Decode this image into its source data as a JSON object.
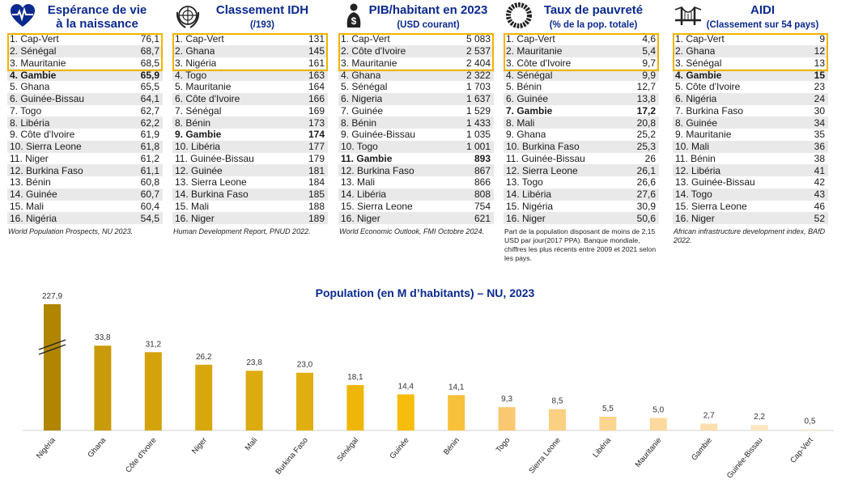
{
  "panels": [
    {
      "id": "esperance",
      "title": "Espérance de vie",
      "subtitle": "à la naissance",
      "icon": "heart-pulse-icon",
      "rows": [
        {
          "name": "1. Cap-Vert",
          "value": "76,1"
        },
        {
          "name": "2. Sénégal",
          "value": "68,7"
        },
        {
          "name": "3. Mauritanie",
          "value": "68,5"
        },
        {
          "name": "4. Gambie",
          "value": "65,9",
          "bold": true
        },
        {
          "name": "5. Ghana",
          "value": "65,5"
        },
        {
          "name": "6. Guinée-Bissau",
          "value": "64,1"
        },
        {
          "name": "7. Togo",
          "value": "62,7"
        },
        {
          "name": "8. Libéria",
          "value": "62,2"
        },
        {
          "name": "9. Côte d'Ivoire",
          "value": "61,9"
        },
        {
          "name": "10. Sierra Leone",
          "value": "61,8"
        },
        {
          "name": "11. Niger",
          "value": "61,2"
        },
        {
          "name": "12. Burkina Faso",
          "value": "61,1"
        },
        {
          "name": "13. Bénin",
          "value": "60,8"
        },
        {
          "name": "14. Guinée",
          "value": "60,7"
        },
        {
          "name": "15. Mali",
          "value": "60,4"
        },
        {
          "name": "16. Nigéria",
          "value": "54,5"
        }
      ],
      "source": "World Population Prospects, NU 2023."
    },
    {
      "id": "idh",
      "title": "Classement IDH",
      "subtitle": "(/193)",
      "icon": "un-globe-icon",
      "rows": [
        {
          "name": "1. Cap-Vert",
          "value": "131"
        },
        {
          "name": "2. Ghana",
          "value": "145"
        },
        {
          "name": "3. Nigéria",
          "value": "161"
        },
        {
          "name": "4. Togo",
          "value": "163"
        },
        {
          "name": "5. Mauritanie",
          "value": "164"
        },
        {
          "name": "6. Côte d'Ivoire",
          "value": "166"
        },
        {
          "name": "7. Sénégal",
          "value": "169"
        },
        {
          "name": "8. Bénin",
          "value": "173"
        },
        {
          "name": "9. Gambie",
          "value": "174",
          "bold": true
        },
        {
          "name": "10. Libéria",
          "value": "177"
        },
        {
          "name": "11. Guinée-Bissau",
          "value": "179"
        },
        {
          "name": "12. Guinée",
          "value": "181"
        },
        {
          "name": "13. Sierra Leone",
          "value": "184"
        },
        {
          "name": "14. Burkina Faso",
          "value": "185"
        },
        {
          "name": "15. Mali",
          "value": "188"
        },
        {
          "name": "16. Niger",
          "value": "189"
        }
      ],
      "source": "Human Development Report, PNUD 2022."
    },
    {
      "id": "pib",
      "title": "PIB/habitant en 2023",
      "subtitle": "(USD courant)",
      "icon": "money-person-icon",
      "rows": [
        {
          "name": "1. Cap-Vert",
          "value": "5 083"
        },
        {
          "name": "2. Côte d'Ivoire",
          "value": "2 537"
        },
        {
          "name": "3. Mauritanie",
          "value": "2 404"
        },
        {
          "name": "4. Ghana",
          "value": "2 322"
        },
        {
          "name": "5. Sénégal",
          "value": "1 703"
        },
        {
          "name": "6. Nigeria",
          "value": "1 637"
        },
        {
          "name": "7. Guinée",
          "value": "1 529"
        },
        {
          "name": "8. Bénin",
          "value": "1 433"
        },
        {
          "name": "9. Guinée-Bissau",
          "value": "1 035"
        },
        {
          "name": "10. Togo",
          "value": "1 001"
        },
        {
          "name": "11. Gambie",
          "value": "893",
          "bold": true
        },
        {
          "name": "12. Burkina Faso",
          "value": "867"
        },
        {
          "name": "13. Mali",
          "value": "866"
        },
        {
          "name": "14. Libéria",
          "value": "808"
        },
        {
          "name": "15. Sierra Leone",
          "value": "754"
        },
        {
          "name": "16. Niger",
          "value": "621"
        }
      ],
      "source": "World Economic Outlook, FMI Octobre 2024."
    },
    {
      "id": "pauvrete",
      "title": "Taux de pauvreté",
      "subtitle": "(% de la pop. totale)",
      "icon": "sdg-wheel-icon",
      "rows": [
        {
          "name": "1. Cap-Vert",
          "value": "4,6"
        },
        {
          "name": "2. Mauritanie",
          "value": "5,4"
        },
        {
          "name": "3. Côte d'Ivoire",
          "value": "9,7"
        },
        {
          "name": "4. Sénégal",
          "value": "9,9"
        },
        {
          "name": "5. Bénin",
          "value": "12,7"
        },
        {
          "name": "6. Guinée",
          "value": "13,8"
        },
        {
          "name": "7. Gambie",
          "value": "17,2",
          "bold": true
        },
        {
          "name": "8. Mali",
          "value": "20,8"
        },
        {
          "name": "9. Ghana",
          "value": "25,2"
        },
        {
          "name": "10. Burkina Faso",
          "value": "25,3"
        },
        {
          "name": "11. Guinée-Bissau",
          "value": "26"
        },
        {
          "name": "12. Sierra Leone",
          "value": "26,1"
        },
        {
          "name": "13. Togo",
          "value": "26,6"
        },
        {
          "name": "14. Libéria",
          "value": "27,6"
        },
        {
          "name": "15. Nigéria",
          "value": "30,9"
        },
        {
          "name": "16. Niger",
          "value": "50,6"
        }
      ],
      "source": "Part de la population disposant de moins de 2,15 USD par jour(2017 PPA). Banque mondiale, chiffres les plus récents entre 2009 et 2021 selon les pays."
    },
    {
      "id": "aidi",
      "title": "AIDI",
      "subtitle": "(Classement sur 54 pays)",
      "icon": "bridge-icon",
      "rows": [
        {
          "name": "1. Cap-Vert",
          "value": "9"
        },
        {
          "name": "2. Ghana",
          "value": "12"
        },
        {
          "name": "3. Sénégal",
          "value": "13"
        },
        {
          "name": "4. Gambie",
          "value": "15",
          "bold": true
        },
        {
          "name": "5. Côte d'Ivoire",
          "value": "23"
        },
        {
          "name": "6. Nigéria",
          "value": "24"
        },
        {
          "name": "7. Burkina Faso",
          "value": "30"
        },
        {
          "name": "8. Guinée",
          "value": "34"
        },
        {
          "name": "9. Mauritanie",
          "value": "35"
        },
        {
          "name": "10. Mali",
          "value": "36"
        },
        {
          "name": "11. Bénin",
          "value": "38"
        },
        {
          "name": "12. Libéria",
          "value": "41"
        },
        {
          "name": "13. Guinée-Bissau",
          "value": "42"
        },
        {
          "name": "14. Togo",
          "value": "43"
        },
        {
          "name": "15. Sierra Leone",
          "value": "46"
        },
        {
          "name": "16. Niger",
          "value": "52"
        }
      ],
      "source": "African infrastructure development index, BAfD 2022."
    }
  ],
  "colors": {
    "title": "#0b2a8f",
    "highlight_border": "#f0b400",
    "row_alt": "#e9e9e9"
  },
  "chart_data": {
    "type": "bar",
    "title": "Population (en M d’habitants) – NU, 2023",
    "categories": [
      "Nigéria",
      "Ghana",
      "Côte d'Ivoire",
      "Niger",
      "Mali",
      "Burkina Faso",
      "Sénégal",
      "Guinée",
      "Bénin",
      "Togo",
      "Sierra Leone",
      "Libéria",
      "Mauritanie",
      "Gambie",
      "Guinée-Bissau",
      "Cap-Vert"
    ],
    "values": [
      227.9,
      33.8,
      31.2,
      26.2,
      23.8,
      23.0,
      18.1,
      14.4,
      14.1,
      9.3,
      8.5,
      5.5,
      5.0,
      2.7,
      2.2,
      0.5
    ],
    "labels": [
      "227,9",
      "33,8",
      "31,2",
      "26,2",
      "23,8",
      "23,0",
      "18,1",
      "14,4",
      "14,1",
      "9,3",
      "8,5",
      "5,5",
      "5,0",
      "2,7",
      "2,2",
      "0,5"
    ],
    "colors": [
      "#b08500",
      "#c99a0a",
      "#d4a30c",
      "#d8a70d",
      "#dcab10",
      "#e0ae10",
      "#efb60a",
      "#f7bd0d",
      "#f8c13a",
      "#f9c870",
      "#fad083",
      "#fbd58f",
      "#fcd99c",
      "#fcdfae",
      "#fde5bf",
      "#fdebd0"
    ],
    "broken_axis_first_bar": true,
    "grid": false
  }
}
